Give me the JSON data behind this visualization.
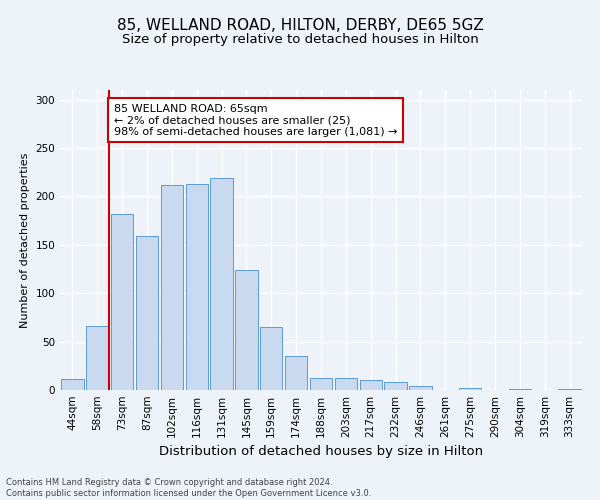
{
  "title": "85, WELLAND ROAD, HILTON, DERBY, DE65 5GZ",
  "subtitle": "Size of property relative to detached houses in Hilton",
  "xlabel": "Distribution of detached houses by size in Hilton",
  "ylabel": "Number of detached properties",
  "footer_line1": "Contains HM Land Registry data © Crown copyright and database right 2024.",
  "footer_line2": "Contains public sector information licensed under the Open Government Licence v3.0.",
  "bar_labels": [
    "44sqm",
    "58sqm",
    "73sqm",
    "87sqm",
    "102sqm",
    "116sqm",
    "131sqm",
    "145sqm",
    "159sqm",
    "174sqm",
    "188sqm",
    "203sqm",
    "217sqm",
    "232sqm",
    "246sqm",
    "261sqm",
    "275sqm",
    "290sqm",
    "304sqm",
    "319sqm",
    "333sqm"
  ],
  "bar_values": [
    11,
    66,
    182,
    159,
    212,
    213,
    219,
    124,
    65,
    35,
    12,
    12,
    10,
    8,
    4,
    0,
    2,
    0,
    1,
    0,
    1
  ],
  "bar_color": "#c9d9ef",
  "bar_edge_color": "#5b9bd5",
  "annotation_text_line1": "85 WELLAND ROAD: 65sqm",
  "annotation_text_line2": "← 2% of detached houses are smaller (25)",
  "annotation_text_line3": "98% of semi-detached houses are larger (1,081) →",
  "annotation_box_color": "#ffffff",
  "annotation_box_edge": "#cc0000",
  "vline_color": "#cc0000",
  "ylim": [
    0,
    310
  ],
  "yticks": [
    0,
    50,
    100,
    150,
    200,
    250,
    300
  ],
  "background_color": "#eef2f9",
  "grid_color": "#ffffff",
  "title_fontsize": 11,
  "subtitle_fontsize": 9.5,
  "xlabel_fontsize": 9.5,
  "ylabel_fontsize": 8,
  "tick_fontsize": 7.5,
  "annotation_fontsize": 8,
  "footer_fontsize": 6
}
